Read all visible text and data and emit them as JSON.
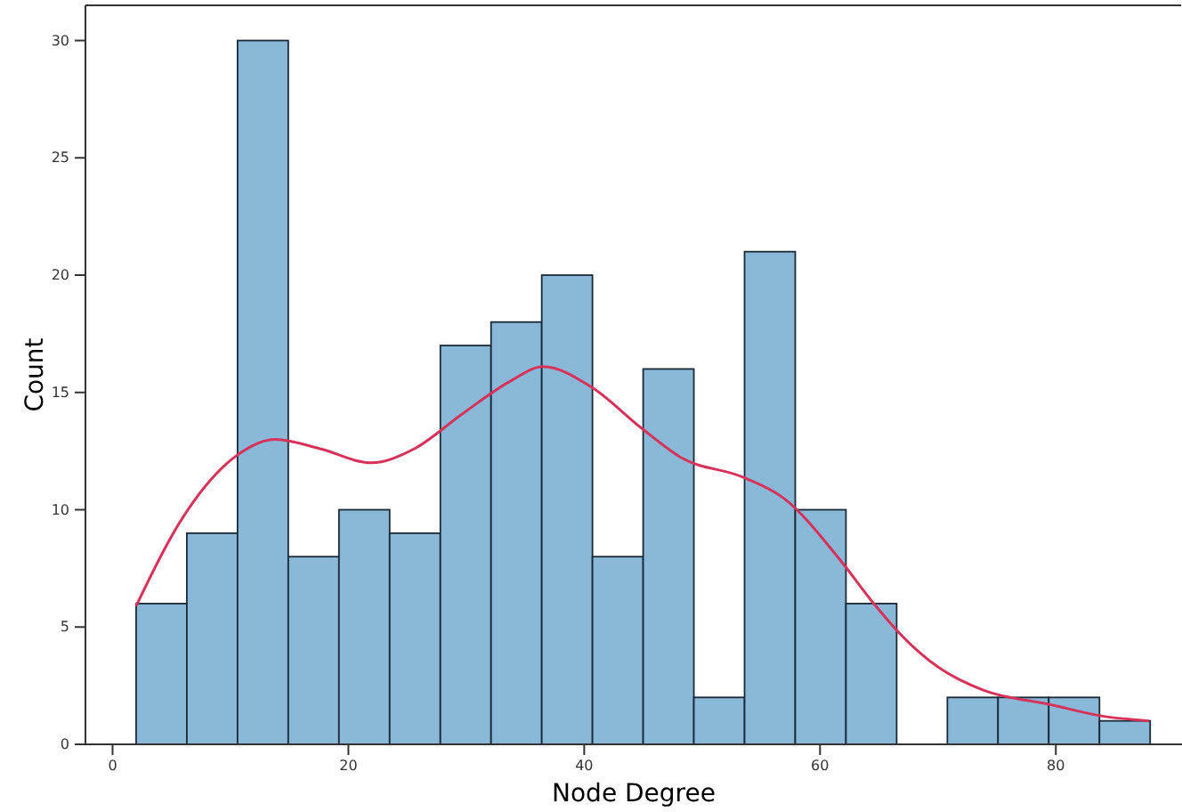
{
  "chart_data": {
    "type": "histogram",
    "xlabel": "Node Degree",
    "ylabel": "Count",
    "bins": [
      2,
      6.3,
      10.6,
      14.9,
      19.2,
      23.5,
      27.8,
      32.1,
      36.4,
      40.7,
      45,
      49.3,
      53.6,
      57.9,
      62.2,
      66.5,
      70.8,
      75.1,
      79.4,
      83.7,
      88
    ],
    "values": [
      6,
      9,
      30,
      8,
      10,
      9,
      17,
      18,
      20,
      8,
      16,
      2,
      21,
      10,
      6,
      0,
      2,
      2,
      2,
      1
    ],
    "color": "#8ab8d9",
    "series": [
      {
        "type": "line",
        "color": "#d6325a",
        "x": [
          2,
          6,
          10.5,
          13.8,
          17.6,
          21.9,
          25.6,
          29.7,
          33.8,
          36.5,
          40.7,
          44.8,
          48.3,
          53.4,
          56.9,
          61.8,
          64.4,
          67,
          70,
          73.9,
          79.5,
          84,
          87.9
        ],
        "values": [
          5.9,
          9.7,
          12.3,
          13,
          12.6,
          12,
          12.6,
          14.1,
          15.5,
          16.1,
          15.2,
          13.5,
          12.2,
          11.4,
          10.5,
          7.8,
          6.1,
          4.6,
          3.3,
          2.3,
          1.7,
          1.2,
          1
        ]
      }
    ],
    "xlim": [
      -2.3,
      90.7
    ],
    "xticks": [
      0,
      20,
      40,
      60,
      80
    ],
    "ylim": [
      0,
      31.5
    ],
    "yticks": [
      0,
      5,
      10,
      15,
      20,
      25,
      30
    ]
  }
}
